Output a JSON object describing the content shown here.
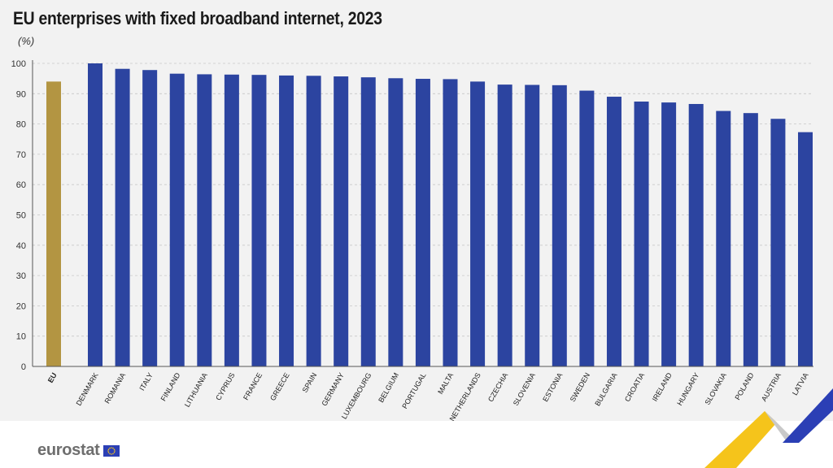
{
  "header": {
    "title": "EU enterprises with fixed broadband internet, 2023",
    "unit": "(%)"
  },
  "footer": {
    "logo_text": "eurostat"
  },
  "colors": {
    "background": "#f2f2f2",
    "eu_bar": "#b39542",
    "country_bar": "#2c44a0",
    "gridline": "#c8c8c8",
    "deco_yellow": "#f5c41b",
    "deco_blue": "#2b3fb5"
  },
  "chart_data": {
    "type": "bar",
    "title": "EU enterprises with fixed broadband internet, 2023",
    "ylabel": "(%)",
    "xlabel": "",
    "ylim": [
      0,
      100
    ],
    "yticks": [
      0,
      10,
      20,
      30,
      40,
      50,
      60,
      70,
      80,
      90,
      100
    ],
    "grid": true,
    "categories": [
      "EU",
      "DENMARK",
      "ROMANIA",
      "ITALY",
      "FINLAND",
      "LITHUANIA",
      "CYPRUS",
      "FRANCE",
      "GREECE",
      "SPAIN",
      "GERMANY",
      "LUXEMBOURG",
      "BELGIUM",
      "PORTUGAL",
      "MALTA",
      "NETHERLANDS",
      "CZECHIA",
      "SLOVENIA",
      "ESTONIA",
      "SWEDEN",
      "BULGARIA",
      "CROATIA",
      "IRELAND",
      "HUNGARY",
      "SLOVAKIA",
      "POLAND",
      "AUSTRIA",
      "LATVIA"
    ],
    "values": [
      94.0,
      100.0,
      98.2,
      97.8,
      96.6,
      96.4,
      96.3,
      96.2,
      96.0,
      95.9,
      95.7,
      95.4,
      95.1,
      94.9,
      94.8,
      94.0,
      93.0,
      92.9,
      92.8,
      91.0,
      89.0,
      87.4,
      87.1,
      86.6,
      84.3,
      83.6,
      81.7,
      77.3
    ]
  }
}
